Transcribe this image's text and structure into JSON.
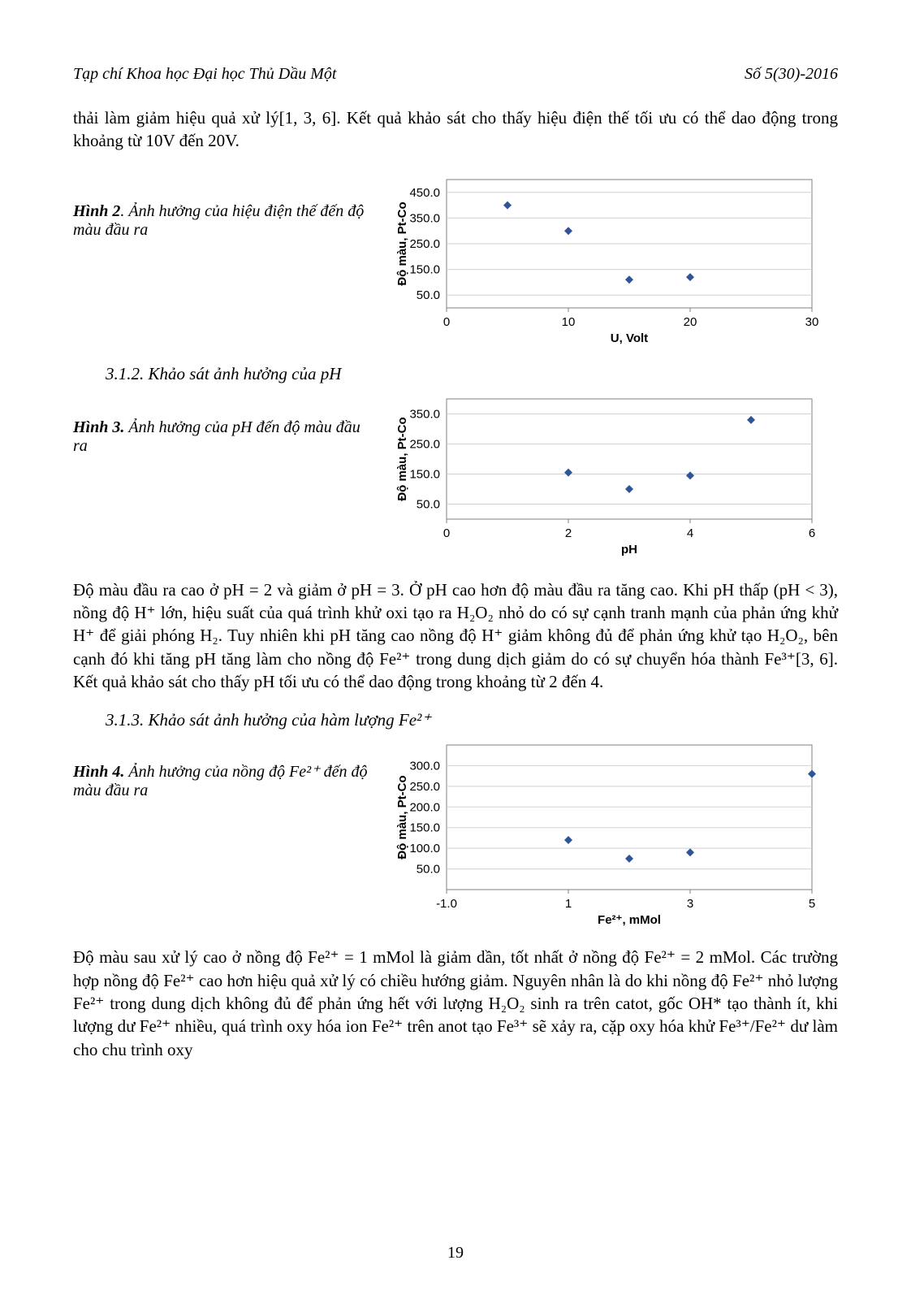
{
  "header": {
    "journal": "Tạp chí Khoa học Đại học Thủ Dầu Một",
    "issue": "Số 5(30)-2016"
  },
  "intro_text": "thải làm giảm hiệu quả xử lý[1, 3, 6]. Kết quả khảo sát cho thấy hiệu điện thế tối ưu có thể dao động trong khoảng từ 10V đến 20V.",
  "fig2": {
    "caption_lead": "Hình 2",
    "caption_rest": ". Ảnh hưởng của hiệu điện thế đến độ màu đầu ra",
    "chart": {
      "type": "scatter",
      "ylabel": "Độ màu, Pt-Co",
      "xlabel": "U, Volt",
      "ylim": [
        0,
        500
      ],
      "yticks": [
        50.0,
        150.0,
        250.0,
        350.0,
        450.0
      ],
      "xlim": [
        0,
        30
      ],
      "xticks": [
        0,
        10,
        20,
        30
      ],
      "points": [
        {
          "x": 5,
          "y": 400
        },
        {
          "x": 10,
          "y": 300
        },
        {
          "x": 15,
          "y": 110
        },
        {
          "x": 20,
          "y": 120
        }
      ],
      "marker_color": "#2f5597",
      "grid_color": "#d0d0d0",
      "axis_color": "#808080",
      "tick_fontsize": 15,
      "label_fontsize": 15,
      "label_fontweight": "bold"
    }
  },
  "sec312_head": "3.1.2. Khảo sát ảnh hưởng của pH",
  "fig3": {
    "caption_lead": "Hình 3.",
    "caption_rest": " Ảnh hưởng của pH đến độ màu đầu ra",
    "chart": {
      "type": "scatter",
      "ylabel": "Độ màu, Pt-Co",
      "xlabel": "pH",
      "ylim": [
        0,
        400
      ],
      "yticks": [
        50.0,
        150.0,
        250.0,
        350.0
      ],
      "xlim": [
        0,
        6
      ],
      "xticks": [
        0,
        2,
        4,
        6
      ],
      "points": [
        {
          "x": 2,
          "y": 155
        },
        {
          "x": 3,
          "y": 100
        },
        {
          "x": 4,
          "y": 145
        },
        {
          "x": 5,
          "y": 330
        }
      ],
      "marker_color": "#2f5597",
      "grid_color": "#d0d0d0",
      "axis_color": "#808080",
      "tick_fontsize": 15,
      "label_fontsize": 15,
      "label_fontweight": "bold"
    }
  },
  "para_312": "Độ màu đầu ra cao ở pH = 2 và giảm ở pH = 3. Ở pH cao hơn độ màu đầu ra tăng cao. Khi pH thấp (pH < 3), nồng độ H⁺ lớn, hiệu suất của quá trình khử oxi tạo ra H₂O₂ nhỏ do có sự cạnh tranh mạnh của phản ứng khử H⁺ để giải phóng H₂. Tuy nhiên khi pH tăng cao nồng độ H⁺ giảm không đủ để phản ứng khử tạo H₂O₂, bên cạnh đó khi tăng pH tăng làm cho nồng độ Fe²⁺ trong dung dịch giảm do có sự chuyển hóa thành Fe³⁺[3, 6]. Kết quả khảo sát cho thấy pH tối ưu có thể dao động trong khoảng từ 2 đến 4.",
  "sec313_head": "3.1.3. Khảo sát ảnh hưởng của hàm lượng Fe²⁺",
  "fig4": {
    "caption_lead": "Hình 4.",
    "caption_rest": " Ảnh hưởng của nồng độ Fe²⁺  đến độ màu đầu ra",
    "chart": {
      "type": "scatter",
      "ylabel": "Độ màu, Pt-Co",
      "xlabel": "Fe²⁺, mMol",
      "ylim": [
        0,
        350
      ],
      "yticks": [
        50.0,
        100.0,
        150.0,
        200.0,
        250.0,
        300.0
      ],
      "xlim": [
        -1.0,
        5.0
      ],
      "xticks": [
        -1.0,
        1.0,
        3.0,
        5.0
      ],
      "points": [
        {
          "x": 1.0,
          "y": 120
        },
        {
          "x": 2.0,
          "y": 75
        },
        {
          "x": 3.0,
          "y": 90
        },
        {
          "x": 5.0,
          "y": 280
        }
      ],
      "marker_color": "#2f5597",
      "grid_color": "#d0d0d0",
      "axis_color": "#808080",
      "tick_fontsize": 15,
      "label_fontsize": 15,
      "label_fontweight": "bold"
    }
  },
  "para_313": "Độ màu sau xử lý cao ở nồng độ Fe²⁺ = 1 mMol là giảm dần, tốt nhất ở nồng độ Fe²⁺ = 2 mMol. Các trường hợp nồng độ Fe²⁺ cao hơn hiệu quả xử lý có chiều hướng giảm. Nguyên nhân là do khi nồng độ Fe²⁺ nhỏ lượng Fe²⁺ trong dung dịch không đủ để phản ứng hết với lượng H₂O₂ sinh ra trên catot, gốc OH* tạo thành ít, khi lượng dư Fe²⁺ nhiều, quá trình oxy hóa ion Fe²⁺ trên anot tạo Fe³⁺ sẽ xảy ra, cặp oxy hóa khử Fe³⁺/Fe²⁺ dư làm cho chu trình oxy",
  "page_number": "19"
}
